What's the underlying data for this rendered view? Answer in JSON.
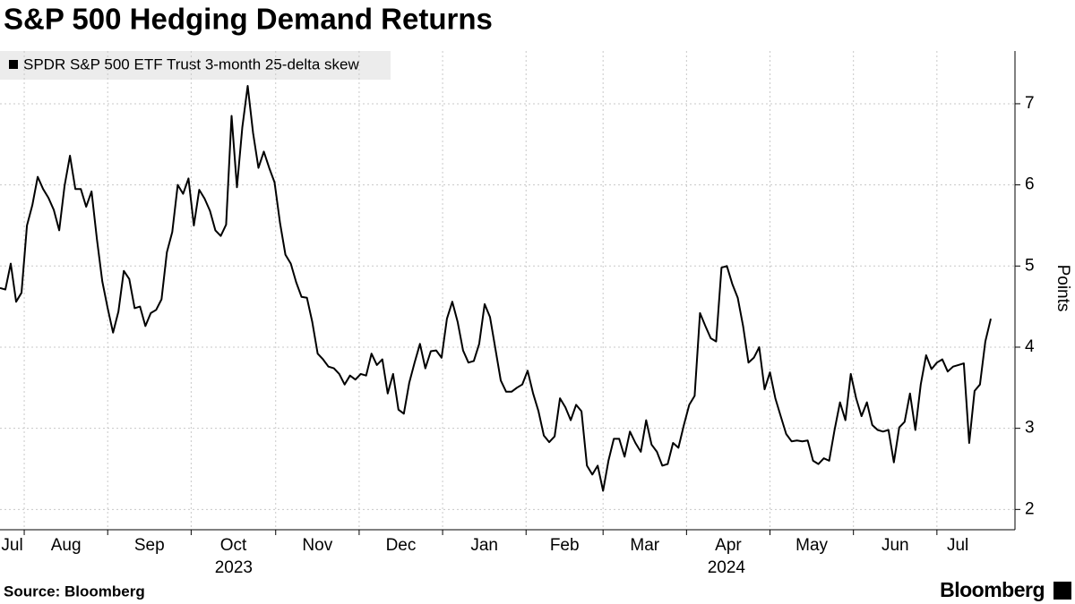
{
  "chart_data": {
    "type": "line",
    "title": "S&P 500 Hedging Demand Returns",
    "y_label": "Points",
    "source": "Source: Bloomberg",
    "brand": "Bloomberg",
    "series": [
      {
        "name": "SPDR S&P 500 ETF Trust 3-month 25-delta skew",
        "color": "#000000",
        "values": [
          4.73,
          4.71,
          5.03,
          4.56,
          4.67,
          5.5,
          5.75,
          6.1,
          5.95,
          5.84,
          5.69,
          5.44,
          5.99,
          6.36,
          5.95,
          5.95,
          5.73,
          5.92,
          5.33,
          4.81,
          4.48,
          4.18,
          4.44,
          4.94,
          4.84,
          4.48,
          4.5,
          4.26,
          4.42,
          4.46,
          4.59,
          5.17,
          5.42,
          6.0,
          5.89,
          6.08,
          5.5,
          5.94,
          5.83,
          5.68,
          5.44,
          5.37,
          5.51,
          6.85,
          5.97,
          6.71,
          7.22,
          6.64,
          6.21,
          6.41,
          6.21,
          6.03,
          5.53,
          5.14,
          5.03,
          4.8,
          4.62,
          4.61,
          4.31,
          3.92,
          3.85,
          3.76,
          3.74,
          3.67,
          3.54,
          3.65,
          3.6,
          3.67,
          3.65,
          3.92,
          3.78,
          3.85,
          3.43,
          3.67,
          3.23,
          3.18,
          3.56,
          3.81,
          4.04,
          3.74,
          3.95,
          3.96,
          3.87,
          4.35,
          4.56,
          4.31,
          3.96,
          3.81,
          3.83,
          4.04,
          4.53,
          4.37,
          3.98,
          3.59,
          3.45,
          3.45,
          3.5,
          3.54,
          3.71,
          3.43,
          3.21,
          2.91,
          2.83,
          2.9,
          3.37,
          3.26,
          3.1,
          3.29,
          3.21,
          2.54,
          2.43,
          2.54,
          2.23,
          2.6,
          2.87,
          2.87,
          2.65,
          2.96,
          2.82,
          2.71,
          3.1,
          2.8,
          2.71,
          2.54,
          2.56,
          2.82,
          2.76,
          3.04,
          3.29,
          3.4,
          4.42,
          4.26,
          4.11,
          4.07,
          4.98,
          5.0,
          4.78,
          4.61,
          4.26,
          3.81,
          3.87,
          4.0,
          3.48,
          3.69,
          3.37,
          3.15,
          2.93,
          2.84,
          2.85,
          2.84,
          2.85,
          2.6,
          2.56,
          2.63,
          2.6,
          2.98,
          3.32,
          3.1,
          3.67,
          3.37,
          3.15,
          3.32,
          3.04,
          2.98,
          2.96,
          2.98,
          2.58,
          3.01,
          3.08,
          3.43,
          2.98,
          3.54,
          3.9,
          3.73,
          3.81,
          3.85,
          3.7,
          3.76,
          3.78,
          3.8,
          2.82,
          3.46,
          3.54,
          4.07,
          4.35
        ]
      }
    ],
    "xlim": [
      0,
      188
    ],
    "xticks": [
      {
        "value": 0,
        "label": "Jul"
      },
      {
        "value": 4.5,
        "label": "Aug"
      },
      {
        "value": 20,
        "label": "Sep"
      },
      {
        "value": 35.5,
        "label": "Oct"
      },
      {
        "value": 51.2,
        "label": "Nov"
      },
      {
        "value": 66.7,
        "label": "Dec"
      },
      {
        "value": 82.2,
        "label": "Jan"
      },
      {
        "value": 97.7,
        "label": "Feb"
      },
      {
        "value": 112,
        "label": "Mar"
      },
      {
        "value": 127.5,
        "label": "Apr"
      },
      {
        "value": 143,
        "label": "May"
      },
      {
        "value": 158.5,
        "label": "Jun"
      },
      {
        "value": 174,
        "label": "Jul"
      }
    ],
    "year_labels": [
      {
        "value": 43.4,
        "label": "2023"
      },
      {
        "value": 134.9,
        "label": "2024"
      }
    ],
    "ylim": [
      1.75,
      7.65
    ],
    "yticks": [
      2,
      3,
      4,
      5,
      6,
      7
    ],
    "grid": true
  }
}
